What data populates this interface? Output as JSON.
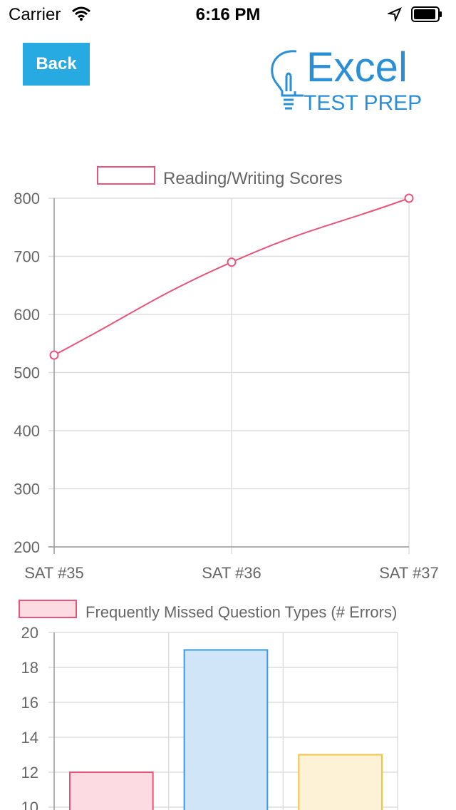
{
  "status_bar": {
    "carrier": "Carrier",
    "time": "6:16 PM"
  },
  "header": {
    "back_label": "Back",
    "logo_line1": "Excel",
    "logo_line2": "TEST PREP"
  },
  "colors": {
    "accent": "#27a9e1",
    "pink": "#e8547a",
    "blue": "#3a9bd9",
    "yellow": "#f5c242",
    "logo_blue": "#2b8fd6"
  },
  "chart_data": [
    {
      "type": "line",
      "legend": "Reading/Writing Scores",
      "categories": [
        "SAT #35",
        "SAT #36",
        "SAT #37"
      ],
      "series": [
        {
          "name": "Reading/Writing Scores",
          "values": [
            530,
            690,
            800
          ]
        }
      ],
      "ylim": [
        200,
        800
      ],
      "yticks": [
        200,
        300,
        400,
        500,
        600,
        700,
        800
      ],
      "grid": true,
      "legend_position": "top"
    },
    {
      "type": "bar",
      "legend": "Frequently Missed Question Types (# Errors)",
      "values": [
        12,
        19,
        13
      ],
      "bar_colors": [
        "#e8547a",
        "#3a9bd9",
        "#f5c242"
      ],
      "ylim": [
        10,
        20
      ],
      "yticks": [
        10,
        12,
        14,
        16,
        18,
        20
      ],
      "grid": true,
      "legend_position": "top"
    }
  ]
}
